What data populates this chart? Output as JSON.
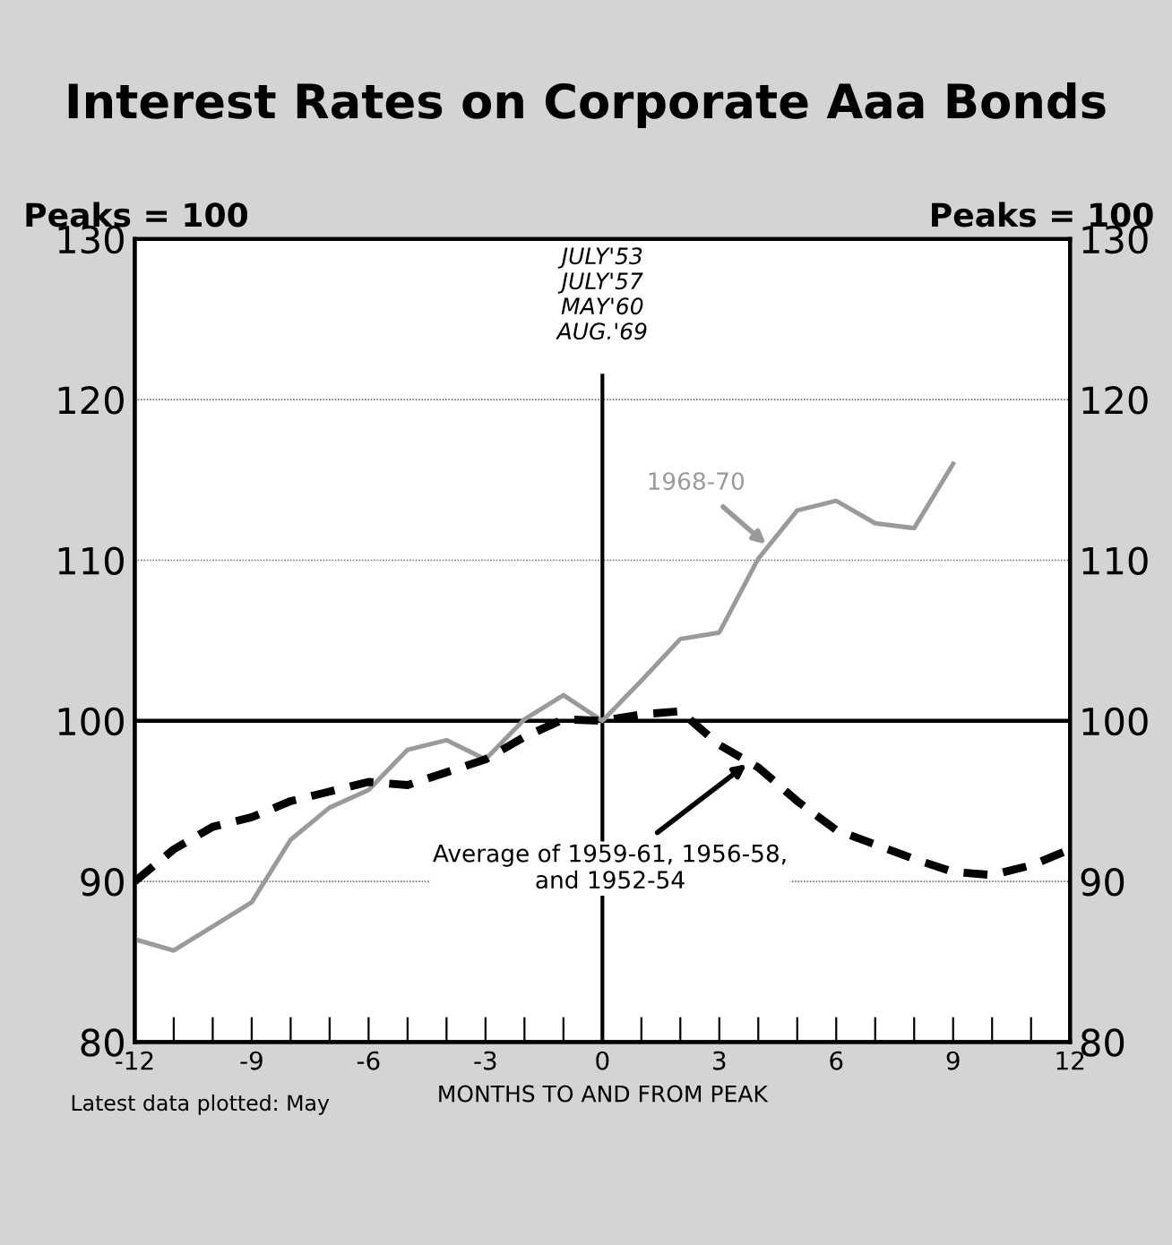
{
  "chart_data": {
    "type": "line",
    "title": "Interest Rates on Corporate Aaa Bonds",
    "ylabel": "Peaks = 100",
    "y2label": "Peaks = 100",
    "xlabel": "MONTHS TO AND FROM PEAK",
    "annotations": [
      {
        "text": "1968-70",
        "x": 4.2,
        "y": 111
      },
      {
        "text": "Average of 1959-61, 1956-58,\nand 1952-54",
        "x": 3.7,
        "y": 97.3
      },
      "Latest data plotted: May"
    ],
    "series": [
      {
        "color": "#9a9a9a",
        "line_style": "solid",
        "x": [
          -12,
          -11,
          -10,
          -9,
          -8,
          -7,
          -6,
          -5,
          -4,
          -3,
          -2,
          -1,
          0,
          1,
          2,
          3,
          4,
          5,
          6,
          7,
          8,
          9
        ],
        "values": [
          86.4,
          85.7,
          87.2,
          88.7,
          92.6,
          94.6,
          95.7,
          98.2,
          98.8,
          97.6,
          100.1,
          101.6,
          100,
          102.5,
          105.1,
          105.5,
          110.1,
          113.1,
          113.7,
          112.3,
          112.0,
          116.0
        ]
      },
      {
        "color": "#000000",
        "line_style": "dashed",
        "x": [
          -12,
          -11,
          -10,
          -9,
          -8,
          -7,
          -6,
          -5,
          -4,
          -3,
          -2,
          -1,
          0,
          1,
          2,
          3,
          4,
          5,
          6,
          7,
          8,
          9,
          10,
          11,
          12
        ],
        "values": [
          90,
          92,
          93.4,
          94,
          95,
          95.6,
          96.2,
          96.0,
          96.8,
          97.6,
          99,
          100.1,
          100,
          100.4,
          100.6,
          98.5,
          97.1,
          95,
          93.2,
          92.3,
          91.4,
          90.6,
          90.4,
          91,
          92
        ]
      }
    ],
    "xlim": [
      -12,
      12
    ],
    "ylim": [
      80,
      130
    ],
    "y2lim": [
      80,
      130
    ],
    "xticks": [
      -12,
      {
        "value": -11,
        "label": null
      },
      {
        "value": -10,
        "label": null
      },
      -9,
      {
        "value": -8,
        "label": null
      },
      {
        "value": -7,
        "label": null
      },
      -6,
      {
        "value": -5,
        "label": null
      },
      {
        "value": -4,
        "label": null
      },
      -3,
      {
        "value": -2,
        "label": null
      },
      {
        "value": -1,
        "label": null
      },
      0,
      {
        "value": 1,
        "label": null
      },
      {
        "value": 2,
        "label": null
      },
      3,
      {
        "value": 4,
        "label": null
      },
      {
        "value": 5,
        "label": null
      },
      6,
      {
        "value": 7,
        "label": null
      },
      {
        "value": 8,
        "label": null
      },
      9,
      {
        "value": 10,
        "label": null
      },
      {
        "value": 11,
        "label": null
      },
      12
    ],
    "yticks": [
      80,
      90,
      100,
      110,
      120,
      130
    ],
    "y2ticks": [
      80,
      90,
      100,
      110,
      120,
      130
    ],
    "ref_lines": [
      {
        "axis": "x",
        "value": 0,
        "label": "JULY'53\nJULY'57\nMAY'60\nAUG.'69",
        "color": "#000000"
      },
      {
        "axis": "y",
        "value": 100,
        "color": "#000000"
      }
    ],
    "grid": "y",
    "legend": false,
    "marker": "none"
  }
}
